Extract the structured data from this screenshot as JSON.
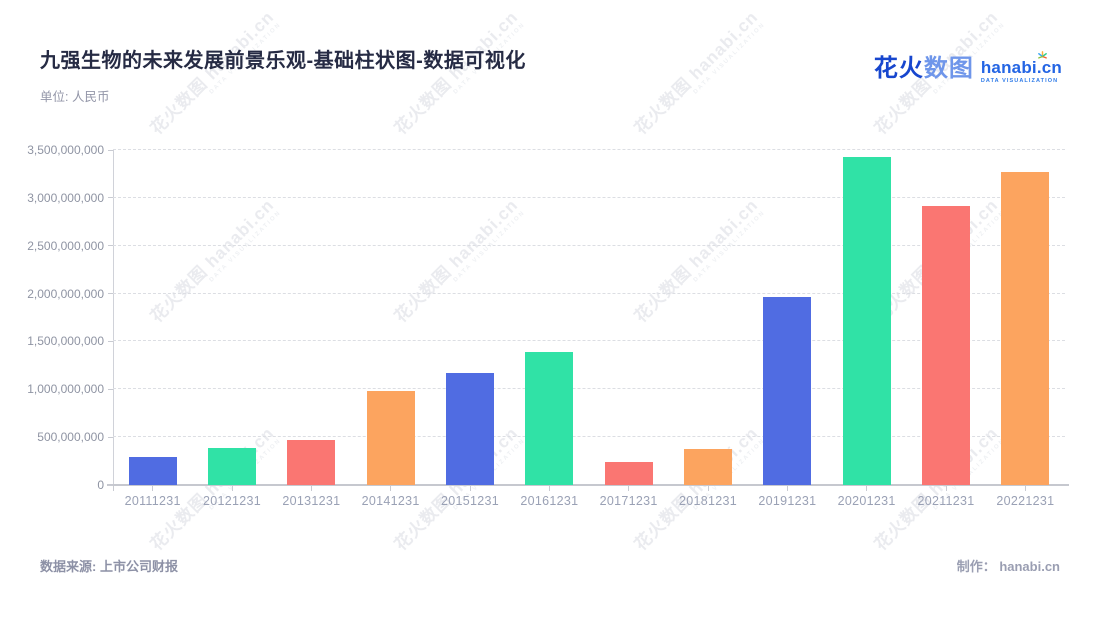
{
  "header": {
    "title": "九强生物的未来发展前景乐观-基础柱状图-数据可视化",
    "subtitle": "单位: 人民币"
  },
  "logo": {
    "cn_part1": "花火",
    "cn_part2": "数图",
    "domain": "hanabi.cn",
    "tagline": "DATA VISUALIZATION",
    "brand_blue_dark": "#1746ce",
    "brand_blue_light": "#6f96ea"
  },
  "watermark": {
    "text": "花火数图 hanabi.cn",
    "tagline": "DATA VISUALIZATION"
  },
  "footer": {
    "source": "数据来源: 上市公司财报",
    "credit": "制作： hanabi.cn"
  },
  "chart_data": {
    "type": "bar",
    "title": "九强生物的未来发展前景乐观-基础柱状图-数据可视化",
    "unit": "人民币",
    "xlabel": "",
    "ylabel": "",
    "categories": [
      "20111231",
      "20121231",
      "20131231",
      "20141231",
      "20151231",
      "20161231",
      "20171231",
      "20181231",
      "20191231",
      "20201231",
      "20211231",
      "20221231"
    ],
    "values": [
      290000000,
      385000000,
      475000000,
      985000000,
      1175000000,
      1390000000,
      245000000,
      375000000,
      1960000000,
      3425000000,
      2910000000,
      3270000000
    ],
    "bar_palette": [
      "#506ce2",
      "#30e2a6",
      "#fa7672",
      "#fca45f"
    ],
    "ylim": [
      0,
      3500000000
    ],
    "ytick_interval": 500000000,
    "ytick_labels": [
      "0",
      "500,000,000",
      "1,000,000,000",
      "1,500,000,000",
      "2,000,000,000",
      "2,500,000,000",
      "3,000,000,000",
      "3,500,000,000"
    ],
    "grid": "horizontal-dashed",
    "legend": "none"
  }
}
